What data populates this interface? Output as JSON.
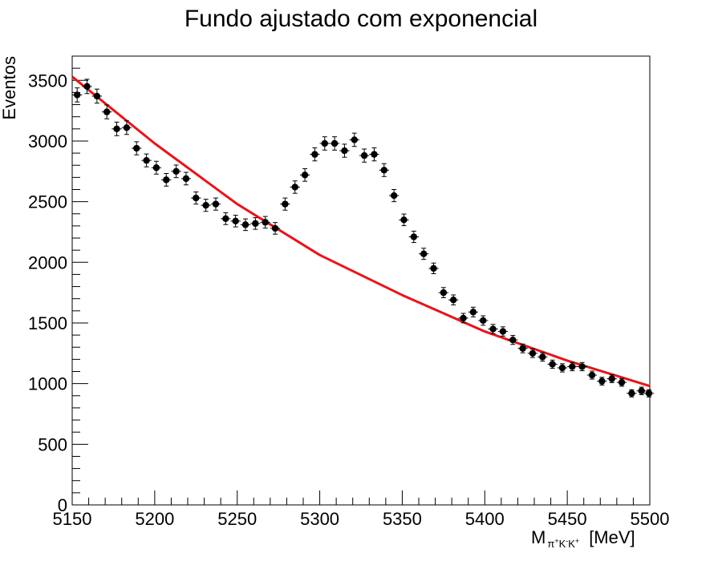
{
  "chart_data": {
    "type": "scatter",
    "title": "Fundo ajustado com exponencial",
    "ylabel": "Eventos",
    "xlabel": {
      "main": "M",
      "subscript_parts": [
        {
          "base": "π",
          "sup": "+"
        },
        {
          "base": "K",
          "sup": "-"
        },
        {
          "base": "K",
          "sup": "+"
        }
      ],
      "unit": "[MeV]"
    },
    "xlim": [
      5150,
      5500
    ],
    "ylim": [
      0,
      3700
    ],
    "x_ticks": [
      "5150",
      "5200",
      "5250",
      "5300",
      "5350",
      "5400",
      "5450",
      "5500"
    ],
    "y_ticks": [
      "0",
      "500",
      "1000",
      "1500",
      "2000",
      "2500",
      "3000",
      "3500"
    ],
    "series": [
      {
        "kind": "data-points-with-errors",
        "color": "#000000",
        "x": [
          5153,
          5159,
          5165,
          5171,
          5177,
          5183,
          5189,
          5195,
          5201,
          5207,
          5213,
          5219,
          5225,
          5231,
          5237,
          5243,
          5249,
          5255,
          5261,
          5267,
          5273,
          5279,
          5285,
          5291,
          5297,
          5303,
          5309,
          5315,
          5321,
          5327,
          5333,
          5339,
          5345,
          5351,
          5357,
          5363,
          5369,
          5375,
          5381,
          5387,
          5393,
          5399,
          5405,
          5411,
          5417,
          5423,
          5429,
          5435,
          5441,
          5447,
          5453,
          5459,
          5465,
          5471,
          5477,
          5483,
          5489,
          5495,
          5501
        ],
        "y": [
          3380,
          3450,
          3370,
          3240,
          3100,
          3110,
          2940,
          2840,
          2780,
          2680,
          2750,
          2690,
          2530,
          2470,
          2480,
          2360,
          2340,
          2310,
          2320,
          2330,
          2280,
          2480,
          2620,
          2720,
          2890,
          2980,
          2980,
          2920,
          3010,
          2880,
          2890,
          2760,
          2550,
          2350,
          2210,
          2070,
          1950,
          1750,
          1690,
          1540,
          1590,
          1520,
          1450,
          1430,
          1360,
          1290,
          1250,
          1220,
          1160,
          1130,
          1140,
          1140,
          1070,
          1020,
          1040,
          1010,
          920,
          940,
          920
        ],
        "yerr": [
          58,
          59,
          58,
          57,
          56,
          56,
          54,
          53,
          53,
          52,
          52,
          52,
          50,
          50,
          50,
          49,
          48,
          48,
          48,
          48,
          48,
          50,
          51,
          52,
          54,
          55,
          55,
          54,
          55,
          54,
          54,
          53,
          50,
          48,
          47,
          46,
          44,
          42,
          41,
          39,
          40,
          39,
          38,
          38,
          37,
          36,
          35,
          35,
          34,
          34,
          34,
          34,
          33,
          32,
          32,
          32,
          30,
          31,
          30
        ],
        "xerr": 3
      },
      {
        "kind": "fit-curve",
        "color": "#e8141a",
        "model": "exponential",
        "x": [
          5150,
          5200,
          5250,
          5300,
          5350,
          5400,
          5450,
          5500
        ],
        "y": [
          3530,
          2980,
          2480,
          2060,
          1730,
          1430,
          1190,
          980
        ]
      }
    ]
  }
}
